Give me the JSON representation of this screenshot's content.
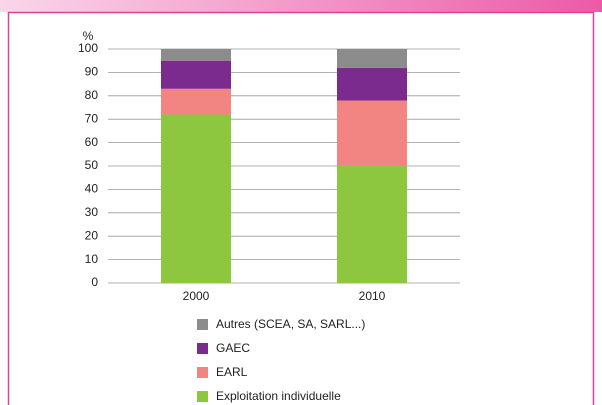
{
  "chart_data": {
    "type": "stacked_bar",
    "y_label": "%",
    "categories": [
      "2000",
      "2010"
    ],
    "series": [
      {
        "name": "Exploitation individuelle",
        "color": "#8dc63f",
        "values": [
          72,
          50
        ]
      },
      {
        "name": "EARL",
        "color": "#f28482",
        "values": [
          11,
          28
        ]
      },
      {
        "name": "GAEC",
        "color": "#7b2a8e",
        "values": [
          12,
          14
        ]
      },
      {
        "name": "Autres (SCEA, SA, SARL...)",
        "color": "#8c8c8c",
        "values": [
          5,
          8
        ]
      }
    ],
    "ylim": [
      0,
      100
    ],
    "yticks": [
      0,
      10,
      20,
      30,
      40,
      50,
      60,
      70,
      80,
      90,
      100
    ],
    "grid": true
  }
}
